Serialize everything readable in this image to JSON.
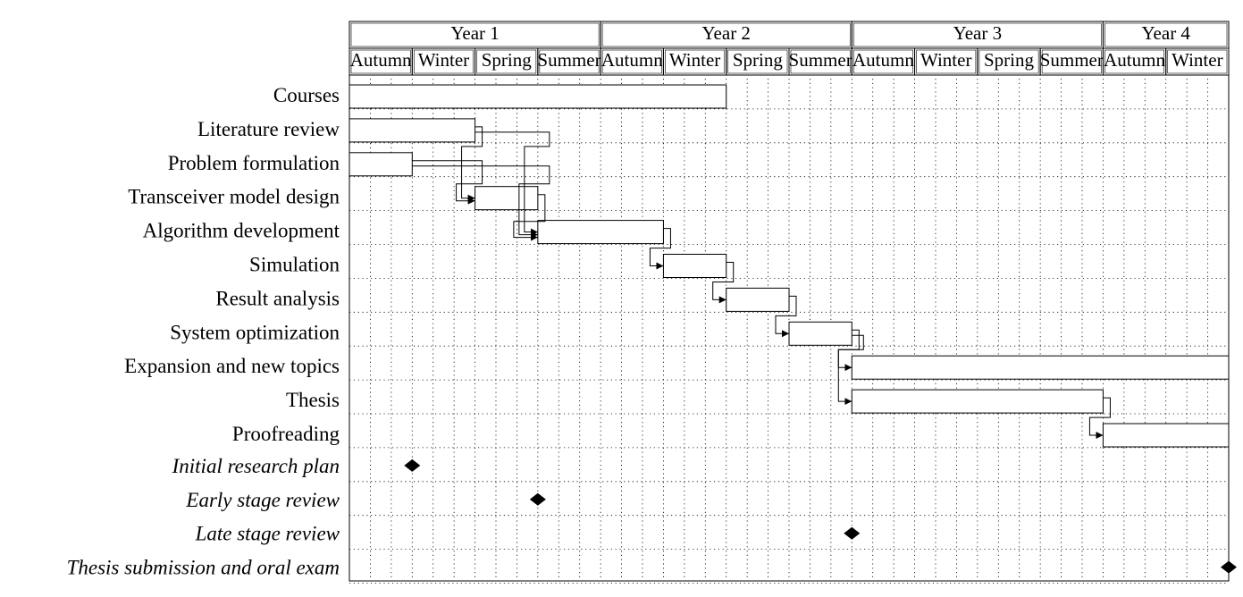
{
  "chart_data": {
    "type": "gantt",
    "title": "",
    "years": [
      "Year 1",
      "Year 2",
      "Year 3",
      "Year 4"
    ],
    "seasons": [
      "Autumn",
      "Winter",
      "Spring",
      "Summer",
      "Autumn",
      "Winter",
      "Spring",
      "Summer",
      "Autumn",
      "Winter",
      "Spring",
      "Summer",
      "Autumn",
      "Winter"
    ],
    "year_span_seasons": [
      4,
      4,
      4,
      2
    ],
    "time_unit": "month",
    "total_units": 42,
    "tasks": [
      {
        "id": "courses",
        "label": "Courses",
        "start": 0,
        "end": 18
      },
      {
        "id": "litreview",
        "label": "Literature review",
        "start": 0,
        "end": 6
      },
      {
        "id": "problem",
        "label": "Problem formulation",
        "start": 0,
        "end": 3
      },
      {
        "id": "transceiver",
        "label": "Transceiver model design",
        "start": 6,
        "end": 9
      },
      {
        "id": "algorithm",
        "label": "Algorithm development",
        "start": 9,
        "end": 15
      },
      {
        "id": "simulation",
        "label": "Simulation",
        "start": 15,
        "end": 18
      },
      {
        "id": "result",
        "label": "Result analysis",
        "start": 18,
        "end": 21
      },
      {
        "id": "sysopt",
        "label": "System optimization",
        "start": 21,
        "end": 24
      },
      {
        "id": "expansion",
        "label": "Expansion and new topics",
        "start": 24,
        "end": 42
      },
      {
        "id": "thesis",
        "label": "Thesis",
        "start": 24,
        "end": 36
      },
      {
        "id": "proofreading",
        "label": "Proofreading",
        "start": 36,
        "end": 42
      }
    ],
    "milestones": [
      {
        "id": "initial",
        "label": "Initial research plan",
        "at": 3
      },
      {
        "id": "early",
        "label": "Early stage review",
        "at": 9
      },
      {
        "id": "late",
        "label": "Late stage review",
        "at": 24
      },
      {
        "id": "submission",
        "label": "Thesis submission and oral exam",
        "at": 42
      }
    ],
    "dependencies": [
      [
        "litreview",
        "transceiver"
      ],
      [
        "problem",
        "transceiver"
      ],
      [
        "litreview",
        "algorithm"
      ],
      [
        "problem",
        "algorithm"
      ],
      [
        "transceiver",
        "algorithm"
      ],
      [
        "algorithm",
        "simulation"
      ],
      [
        "simulation",
        "result"
      ],
      [
        "result",
        "sysopt"
      ],
      [
        "sysopt",
        "expansion"
      ],
      [
        "sysopt",
        "thesis"
      ],
      [
        "thesis",
        "proofreading"
      ]
    ],
    "grid": "dotted"
  }
}
